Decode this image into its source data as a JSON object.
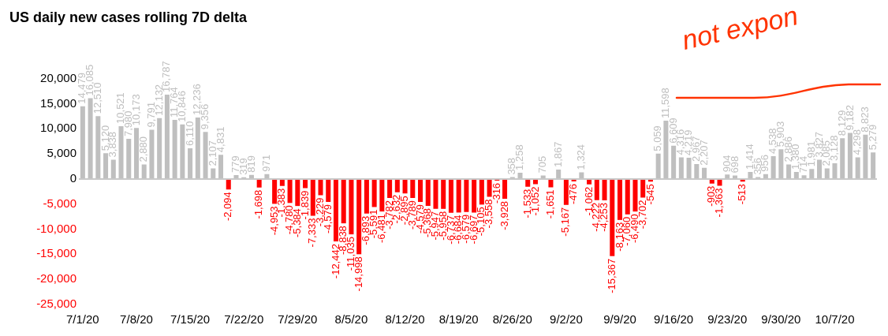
{
  "chart_data": {
    "type": "bar",
    "title": "US daily new cases rolling 7D delta",
    "categories": [
      "7/1/20",
      null,
      null,
      null,
      null,
      null,
      null,
      "7/8/20",
      null,
      null,
      null,
      null,
      null,
      null,
      "7/15/20",
      null,
      null,
      null,
      null,
      null,
      null,
      "7/22/20",
      null,
      null,
      null,
      null,
      null,
      null,
      "7/29/20",
      null,
      null,
      null,
      null,
      null,
      null,
      "8/5/20",
      null,
      null,
      null,
      null,
      null,
      null,
      "8/12/20",
      null,
      null,
      null,
      null,
      null,
      null,
      "8/19/20",
      null,
      null,
      null,
      null,
      null,
      null,
      "8/26/20",
      null,
      null,
      null,
      null,
      null,
      null,
      "9/2/20",
      null,
      null,
      null,
      null,
      null,
      null,
      "9/9/20",
      null,
      null,
      null,
      null,
      null,
      null,
      "9/16/20",
      null,
      null,
      null,
      null,
      null,
      null,
      "9/23/20",
      null,
      null,
      null,
      null,
      null,
      null,
      "9/30/20",
      null,
      null,
      null,
      null,
      null,
      null,
      "10/7/20",
      null,
      null,
      null,
      null,
      null
    ],
    "values": [
      14479,
      16085,
      12510,
      5120,
      3838,
      10521,
      7980,
      10173,
      2880,
      9791,
      12132,
      16787,
      11764,
      10846,
      6110,
      12236,
      9356,
      2107,
      4831,
      -2094,
      779,
      319,
      819,
      -1698,
      971,
      -4953,
      -1383,
      -4780,
      -5384,
      -1839,
      -7333,
      -3229,
      -4579,
      -12442,
      -8838,
      -11035,
      -14998,
      -6893,
      -5591,
      -6481,
      -3782,
      -2632,
      -2895,
      -3789,
      -4579,
      -5368,
      -5947,
      -5958,
      -6737,
      -6684,
      -6579,
      -6697,
      -5105,
      -3558,
      -316,
      -3928,
      358,
      1258,
      -1533,
      -1052,
      705,
      -1651,
      1867,
      -5167,
      -476,
      1324,
      -1062,
      -4222,
      -4253,
      -15367,
      -8163,
      -7060,
      -6490,
      -3702,
      -545,
      5059,
      11598,
      6609,
      4316,
      4219,
      2967,
      2207,
      -903,
      -1363,
      904,
      698,
      -513,
      1414,
      356,
      956,
      4538,
      5903,
      2886,
      1380,
      714,
      1981,
      3827,
      2085,
      3128,
      8129,
      9182,
      4298,
      8823,
      5279
    ],
    "colors": [
      "#bfbfbf",
      "#bfbfbf",
      "#bfbfbf",
      "#bfbfbf",
      "#bfbfbf",
      "#bfbfbf",
      "#bfbfbf",
      "#bfbfbf",
      "#bfbfbf",
      "#bfbfbf",
      "#bfbfbf",
      "#bfbfbf",
      "#bfbfbf",
      "#bfbfbf",
      "#bfbfbf",
      "#bfbfbf",
      "#bfbfbf",
      "#bfbfbf",
      "#bfbfbf",
      "#ff0000",
      "#bfbfbf",
      "#bfbfbf",
      "#bfbfbf",
      "#ff0000",
      "#bfbfbf",
      "#ff0000",
      "#ff0000",
      "#ff0000",
      "#ff0000",
      "#ff0000",
      "#ff0000",
      "#ff0000",
      "#ff0000",
      "#ff0000",
      "#ff0000",
      "#ff0000",
      "#ff0000",
      "#ff0000",
      "#ff0000",
      "#ff0000",
      "#ff0000",
      "#ff0000",
      "#ff0000",
      "#ff0000",
      "#ff0000",
      "#ff0000",
      "#ff0000",
      "#ff0000",
      "#ff0000",
      "#ff0000",
      "#ff0000",
      "#ff0000",
      "#ff0000",
      "#ff0000",
      "#ff0000",
      "#ff0000",
      "#bfbfbf",
      "#bfbfbf",
      "#ff0000",
      "#ff0000",
      "#bfbfbf",
      "#ff0000",
      "#bfbfbf",
      "#ff0000",
      "#ff0000",
      "#bfbfbf",
      "#ff0000",
      "#ff0000",
      "#ff0000",
      "#ff0000",
      "#ff0000",
      "#ff0000",
      "#ff0000",
      "#ff0000",
      "#ff0000",
      "#bfbfbf",
      "#bfbfbf",
      "#bfbfbf",
      "#bfbfbf",
      "#bfbfbf",
      "#bfbfbf",
      "#bfbfbf",
      "#ff0000",
      "#ff0000",
      "#bfbfbf",
      "#bfbfbf",
      "#ff0000",
      "#bfbfbf",
      "#bfbfbf",
      "#bfbfbf",
      "#bfbfbf",
      "#bfbfbf",
      "#bfbfbf",
      "#bfbfbf",
      "#bfbfbf",
      "#bfbfbf",
      "#bfbfbf",
      "#bfbfbf",
      "#bfbfbf",
      "#bfbfbf",
      "#bfbfbf",
      "#bfbfbf",
      "#bfbfbf",
      "#bfbfbf"
    ],
    "value_labels": [
      "14,479",
      "16,085",
      "12,510",
      "5,120",
      "3,838",
      "10,521",
      "7,980",
      "10,173",
      "2,880",
      "9,791",
      "12,132",
      "16,787",
      "11,764",
      "10,846",
      "6,110",
      "12,236",
      "9,356",
      "2,107",
      "4,831",
      "-2,094",
      "779",
      "319",
      "819",
      "-1,698",
      "971",
      "-4,953",
      "-1,383",
      "-4,780",
      "-5,384",
      "-1,839",
      "-7,333",
      "-3,229",
      "-4,579",
      "-12,442",
      "-8,838",
      "-11,035",
      "-14,998",
      "-6,893",
      "-5,591",
      "-6,481",
      "-3,782",
      "-2,632",
      "-2,895",
      "-3,789",
      "-4,579",
      "-5,368",
      "-5,947",
      "-5,958",
      "-6,737",
      "-6,684",
      "-6,579",
      "-6,697",
      "-5,105",
      "-3,558",
      "-316",
      "-3,928",
      "358",
      "1,258",
      "-1,533",
      "-1,052",
      "705",
      "-1,651",
      "1,867",
      "-5,167",
      "-476",
      "1,324",
      "-1,062",
      "-4,222",
      "-4,253",
      "-15,367",
      "-8,163",
      "-7,060",
      "-6,490",
      "-3,702",
      "-545",
      "5,059",
      "11,598",
      "6,609",
      "4,316",
      "4,219",
      "2,967",
      "2,207",
      "-903",
      "-1,363",
      "904",
      "698",
      "-513",
      "1,414",
      "356",
      "956",
      "4,538",
      "5,903",
      "2,886",
      "1,380",
      "714",
      "1,981",
      "3,827",
      "2,085",
      "3,128",
      "8,129",
      "9,182",
      "4,298",
      "8,823",
      "5,279"
    ],
    "ylim": [
      -25000,
      20000
    ],
    "yticks": [
      {
        "value": -25000,
        "label": "-25,000"
      },
      {
        "value": -20000,
        "label": "-20,000"
      },
      {
        "value": -15000,
        "label": "-15,000"
      },
      {
        "value": -10000,
        "label": "-10,000"
      },
      {
        "value": -5000,
        "label": "-5,000"
      },
      0,
      {
        "value": 5000,
        "label": "5,000"
      },
      {
        "value": 10000,
        "label": "10,000"
      },
      {
        "value": 15000,
        "label": "15,000"
      },
      {
        "value": 20000,
        "label": "20,000"
      }
    ],
    "ref_lines": [
      {
        "axis": "y",
        "value": 0,
        "color": "#c8c8c8"
      }
    ],
    "legend": false,
    "annotations": [
      "not expon"
    ]
  }
}
